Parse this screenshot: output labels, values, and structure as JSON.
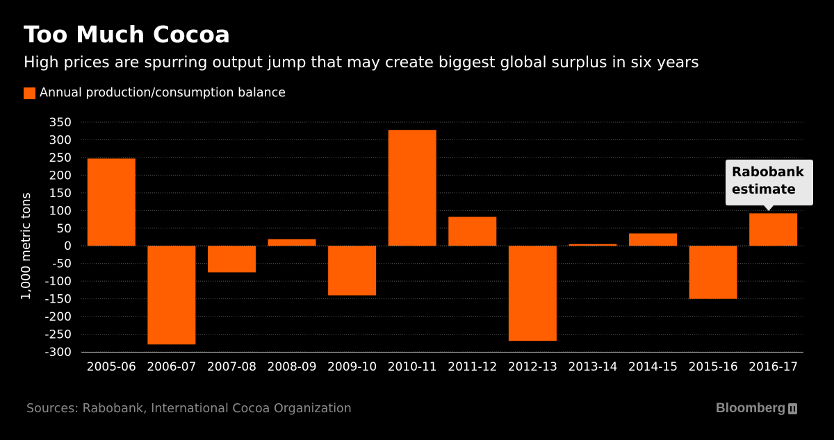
{
  "header": {
    "title": "Too Much Cocoa",
    "subtitle": "High prices are spurring output jump that may create biggest global surplus in six years"
  },
  "legend": {
    "label": "Annual production/consumption balance",
    "color": "#ff5f00"
  },
  "annotation": {
    "line1": "Rabobank",
    "line2": "estimate"
  },
  "footer": {
    "source": "Sources: Rabobank, International Cocoa Organization",
    "brand": "Bloomberg"
  },
  "colors": {
    "background": "#000000",
    "bar": "#ff5f00",
    "text": "#ffffff",
    "muted": "#8a8a8a",
    "gridline": "#5a5a5a"
  },
  "chart_data": {
    "type": "bar",
    "title": "Too Much Cocoa",
    "subtitle": "High prices are spurring output jump that may create biggest global surplus in six years",
    "xlabel": "",
    "ylabel": "1,000 metric tons",
    "categories": [
      "2005-06",
      "2006-07",
      "2007-08",
      "2008-09",
      "2009-10",
      "2010-11",
      "2011-12",
      "2012-13",
      "2013-14",
      "2014-15",
      "2015-16",
      "2016-17"
    ],
    "series": [
      {
        "name": "Annual production/consumption balance",
        "values": [
          247,
          -279,
          -75,
          19,
          -140,
          328,
          82,
          -269,
          5,
          35,
          -150,
          92
        ]
      }
    ],
    "ylim": [
      -300,
      350
    ],
    "yticks": [
      350,
      300,
      250,
      200,
      150,
      100,
      50,
      0,
      -50,
      -100,
      -150,
      -200,
      -250,
      -300
    ],
    "ytick_labels": [
      "350",
      "300",
      "250",
      "200",
      "150",
      "100",
      "50",
      "0",
      "-50",
      "-100",
      "-150",
      "-200",
      "-250",
      "-300"
    ],
    "grid": true,
    "legend_position": "top-left"
  }
}
